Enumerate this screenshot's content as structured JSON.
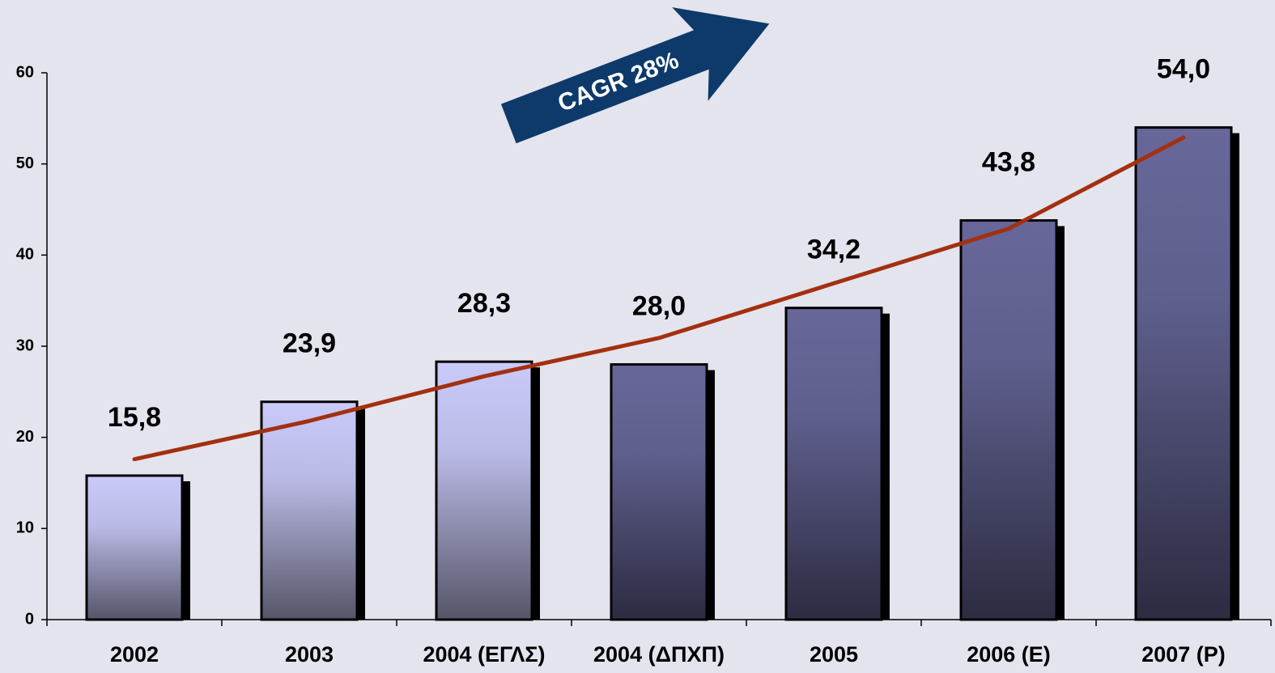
{
  "chart_data": {
    "type": "bar",
    "categories": [
      "2002",
      "2003",
      "2004 (ΕΓΛΣ)",
      "2004 (ΔΠΧΠ)",
      "2005",
      "2006 (Ε)",
      "2007 (Ρ)"
    ],
    "values": [
      15.8,
      23.9,
      28.3,
      28.0,
      34.2,
      43.8,
      54.0
    ],
    "value_labels": [
      "15,8",
      "23,9",
      "28,3",
      "28,0",
      "34,2",
      "43,8",
      "54,0"
    ],
    "colors": [
      "#cacafa",
      "#cacafa",
      "#cacafa",
      "#67679a",
      "#67679a",
      "#67679a",
      "#67679a"
    ],
    "ylim": [
      0,
      60
    ],
    "yticks": [
      0,
      10,
      20,
      30,
      40,
      50,
      60
    ],
    "trend_line": {
      "color": "#a3300f",
      "values": [
        17.6,
        21.8,
        26.7,
        30.9,
        36.9,
        42.9,
        52.9
      ]
    },
    "annotation": "CAGR 28%"
  }
}
